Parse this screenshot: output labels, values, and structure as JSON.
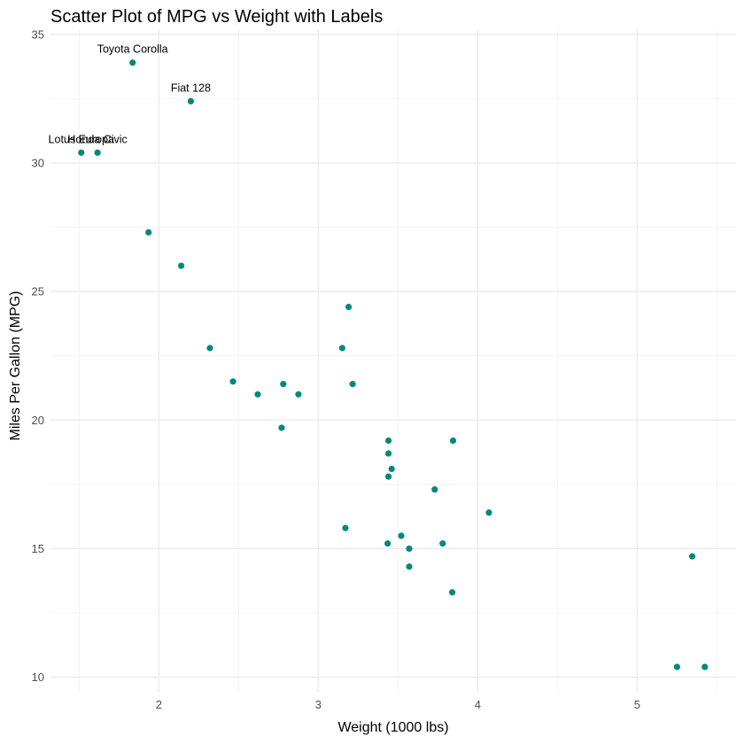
{
  "chart_data": {
    "type": "scatter",
    "title": "Scatter Plot of MPG vs Weight with Labels",
    "xlabel": "Weight (1000 lbs)",
    "ylabel": "Miles Per Gallon (MPG)",
    "xlim": [
      1.32,
      5.62
    ],
    "ylim": [
      9.4,
      35.2
    ],
    "x_ticks": [
      2,
      3,
      4,
      5
    ],
    "y_ticks": [
      10,
      15,
      20,
      25,
      30,
      35
    ],
    "x_minor": [
      1.5,
      2.5,
      3.5,
      4.5,
      5.5
    ],
    "y_minor": [
      12.5,
      17.5,
      22.5,
      27.5,
      32.5
    ],
    "grid": true,
    "point_color": "#00897B",
    "points": [
      {
        "x": 2.62,
        "y": 21.0
      },
      {
        "x": 2.875,
        "y": 21.0
      },
      {
        "x": 2.32,
        "y": 22.8
      },
      {
        "x": 3.215,
        "y": 21.4
      },
      {
        "x": 3.44,
        "y": 18.7
      },
      {
        "x": 3.46,
        "y": 18.1
      },
      {
        "x": 3.57,
        "y": 14.3
      },
      {
        "x": 3.19,
        "y": 24.4
      },
      {
        "x": 3.15,
        "y": 22.8
      },
      {
        "x": 3.44,
        "y": 19.2
      },
      {
        "x": 3.44,
        "y": 17.8
      },
      {
        "x": 4.07,
        "y": 16.4
      },
      {
        "x": 3.73,
        "y": 17.3
      },
      {
        "x": 3.78,
        "y": 15.2
      },
      {
        "x": 5.25,
        "y": 10.4
      },
      {
        "x": 5.424,
        "y": 10.4
      },
      {
        "x": 5.345,
        "y": 14.7
      },
      {
        "x": 2.2,
        "y": 32.4,
        "label": "Fiat 128"
      },
      {
        "x": 1.615,
        "y": 30.4,
        "label": "Honda Civic"
      },
      {
        "x": 1.835,
        "y": 33.9,
        "label": "Toyota Corolla"
      },
      {
        "x": 2.465,
        "y": 21.5
      },
      {
        "x": 3.52,
        "y": 15.5
      },
      {
        "x": 3.435,
        "y": 15.2
      },
      {
        "x": 3.84,
        "y": 13.3
      },
      {
        "x": 3.845,
        "y": 19.2
      },
      {
        "x": 1.935,
        "y": 27.3
      },
      {
        "x": 2.14,
        "y": 26.0
      },
      {
        "x": 1.513,
        "y": 30.4,
        "label": "Lotus Europa"
      },
      {
        "x": 3.17,
        "y": 15.8
      },
      {
        "x": 2.77,
        "y": 19.7
      },
      {
        "x": 3.57,
        "y": 15.0
      },
      {
        "x": 2.78,
        "y": 21.4
      }
    ]
  }
}
